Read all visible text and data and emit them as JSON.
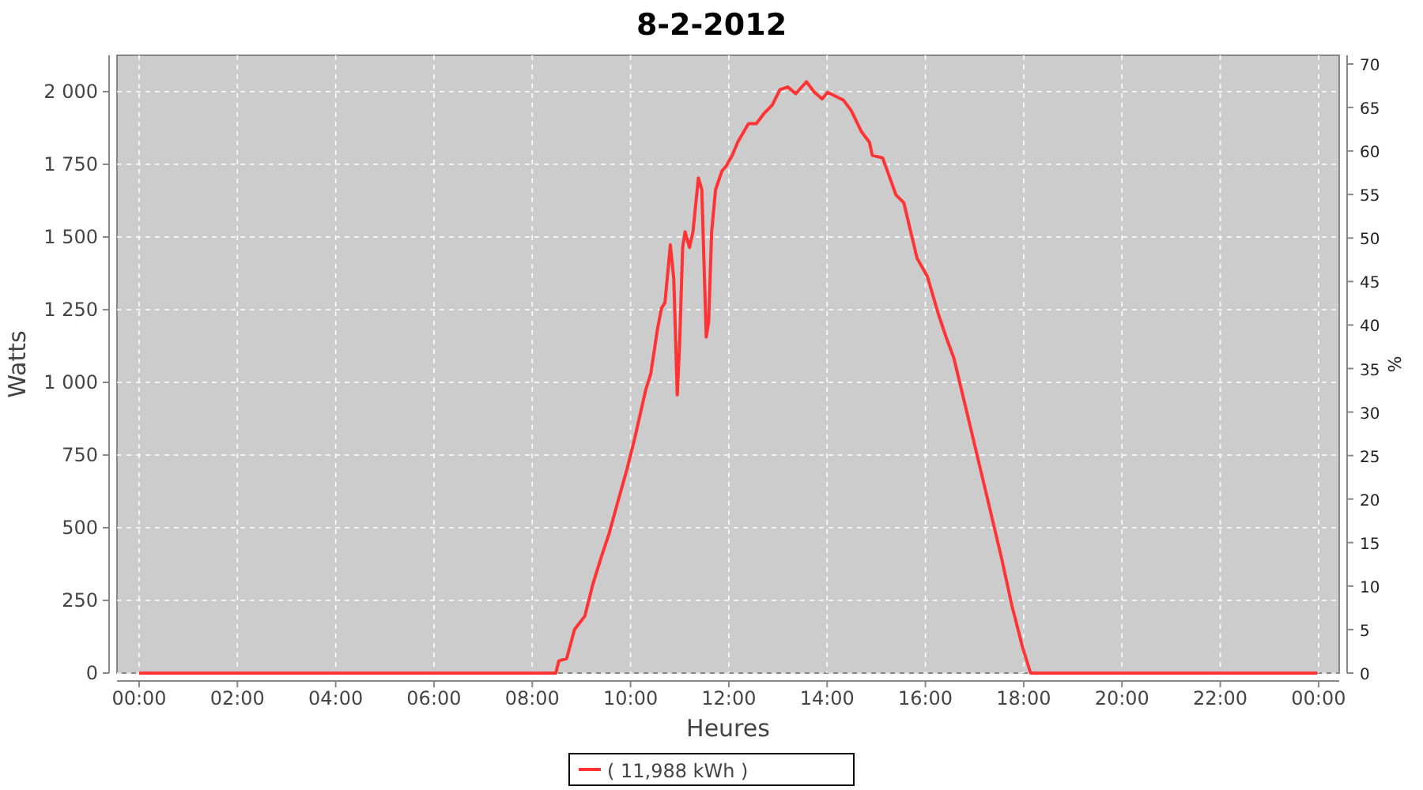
{
  "chart_data": {
    "type": "line",
    "title": "8-2-2012",
    "xlabel": "Heures",
    "ylabel": "Watts",
    "y2label": "%",
    "x": [
      0,
      8.48,
      8.54,
      8.7,
      8.86,
      9.07,
      9.23,
      9.4,
      9.56,
      9.72,
      9.93,
      10.09,
      10.31,
      10.41,
      10.55,
      10.63,
      10.7,
      10.81,
      10.88,
      10.95,
      11.0,
      11.06,
      11.11,
      11.2,
      11.27,
      11.38,
      11.45,
      11.54,
      11.59,
      11.65,
      11.73,
      11.86,
      11.95,
      12.07,
      12.18,
      12.4,
      12.56,
      12.72,
      12.88,
      13.04,
      13.2,
      13.36,
      13.58,
      13.74,
      13.9,
      14.01,
      14.33,
      14.49,
      14.7,
      14.86,
      14.92,
      15.13,
      15.4,
      15.56,
      15.83,
      16.04,
      16.26,
      16.42,
      16.58,
      16.9,
      17.22,
      17.55,
      17.76,
      17.98,
      18.14,
      23.97
    ],
    "series": [
      {
        "name": "( 11,988 kWh )",
        "color": "#ff3333",
        "values": [
          0,
          0,
          42,
          50,
          150,
          196,
          304,
          397,
          478,
          576,
          703,
          811,
          975,
          1029,
          1185,
          1255,
          1274,
          1473,
          1355,
          957,
          1138,
          1464,
          1518,
          1464,
          1518,
          1703,
          1663,
          1156,
          1210,
          1518,
          1663,
          1727,
          1745,
          1781,
          1826,
          1890,
          1890,
          1926,
          1953,
          2007,
          2016,
          1993,
          2034,
          1998,
          1975,
          1998,
          1971,
          1935,
          1862,
          1826,
          1781,
          1772,
          1645,
          1618,
          1427,
          1364,
          1237,
          1156,
          1083,
          857,
          630,
          395,
          232,
          87,
          0,
          0
        ]
      }
    ],
    "xlim": [
      -0.45,
      24.42
    ],
    "xticks": [
      {
        "value": 0,
        "label": "00:00"
      },
      {
        "value": 2,
        "label": "02:00"
      },
      {
        "value": 4,
        "label": "04:00"
      },
      {
        "value": 6,
        "label": "06:00"
      },
      {
        "value": 8,
        "label": "08:00"
      },
      {
        "value": 10,
        "label": "10:00"
      },
      {
        "value": 12,
        "label": "12:00"
      },
      {
        "value": 14,
        "label": "14:00"
      },
      {
        "value": 16,
        "label": "16:00"
      },
      {
        "value": 18,
        "label": "18:00"
      },
      {
        "value": 20,
        "label": "20:00"
      },
      {
        "value": 22,
        "label": "22:00"
      },
      {
        "value": 24,
        "label": "00:00"
      }
    ],
    "ylim": [
      0,
      2125
    ],
    "yticks": [
      0,
      {
        "value": 250,
        "label": "250"
      },
      {
        "value": 500,
        "label": "500"
      },
      {
        "value": 750,
        "label": "750"
      },
      {
        "value": 1000,
        "label": "1 000"
      },
      {
        "value": 1250,
        "label": "1 250"
      },
      {
        "value": 1500,
        "label": "1 500"
      },
      {
        "value": 1750,
        "label": "1 750"
      },
      {
        "value": 2000,
        "label": "2 000"
      }
    ],
    "y2lim": [
      0,
      71
    ],
    "y2ticks": [
      0,
      5,
      10,
      15,
      20,
      25,
      30,
      35,
      40,
      45,
      50,
      55,
      60,
      65,
      70
    ],
    "grid": true,
    "legend": "bottom"
  }
}
